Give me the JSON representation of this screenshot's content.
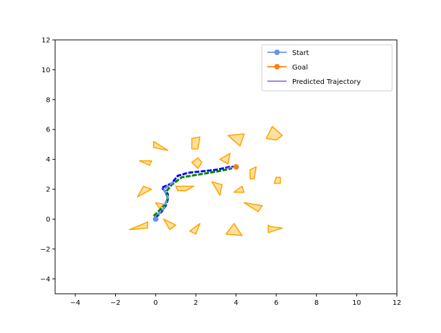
{
  "chart_data": {
    "type": "line",
    "title": "",
    "xlabel": "",
    "ylabel": "",
    "xlim": [
      -5,
      12
    ],
    "ylim": [
      -5,
      12
    ],
    "xticks": [
      -4,
      -2,
      0,
      2,
      4,
      6,
      8,
      10,
      12
    ],
    "yticks": [
      -4,
      -2,
      0,
      2,
      4,
      6,
      8,
      10,
      12
    ],
    "xtick_labels": [
      "−4",
      "−2",
      "0",
      "2",
      "4",
      "6",
      "8",
      "10",
      "12"
    ],
    "ytick_labels": [
      "−4",
      "−2",
      "0",
      "2",
      "4",
      "6",
      "8",
      "10",
      "12"
    ],
    "grid": false,
    "legend_position": "top-right",
    "legend": [
      {
        "label": "Start",
        "color": "#6495ed",
        "marker": "circle"
      },
      {
        "label": "Goal",
        "color": "#ff7f0e",
        "marker": "circle"
      },
      {
        "label": "Predicted Trajectory",
        "color": "#9370db",
        "marker": "none"
      }
    ],
    "start": {
      "x": 0.0,
      "y": 0.0
    },
    "goal": {
      "x": 4.0,
      "y": 3.5
    },
    "obstacle_style": {
      "fill": "#ffe0a0",
      "stroke": "#ffa500"
    },
    "obstacles": [
      [
        [
          -0.1,
          5.2
        ],
        [
          0.6,
          4.6
        ],
        [
          -0.1,
          4.8
        ]
      ],
      [
        [
          1.8,
          5.4
        ],
        [
          2.2,
          5.5
        ],
        [
          2.1,
          4.7
        ],
        [
          1.8,
          4.7
        ]
      ],
      [
        [
          3.6,
          5.6
        ],
        [
          4.4,
          5.7
        ],
        [
          4.2,
          4.9
        ]
      ],
      [
        [
          5.5,
          5.4
        ],
        [
          5.8,
          6.2
        ],
        [
          6.3,
          5.6
        ],
        [
          6.0,
          5.3
        ]
      ],
      [
        [
          -0.8,
          3.9
        ],
        [
          -0.2,
          3.9
        ],
        [
          -0.3,
          3.6
        ]
      ],
      [
        [
          1.8,
          3.8
        ],
        [
          2.1,
          4.1
        ],
        [
          2.3,
          3.8
        ],
        [
          2.1,
          3.4
        ]
      ],
      [
        [
          3.2,
          4.0
        ],
        [
          3.7,
          4.4
        ],
        [
          3.6,
          3.7
        ]
      ],
      [
        [
          4.7,
          3.3
        ],
        [
          5.0,
          3.5
        ],
        [
          4.9,
          2.7
        ],
        [
          4.7,
          2.7
        ]
      ],
      [
        [
          -0.6,
          2.2
        ],
        [
          -0.2,
          2.0
        ],
        [
          -0.9,
          1.5
        ]
      ],
      [
        [
          1.0,
          2.2
        ],
        [
          1.9,
          2.2
        ],
        [
          1.5,
          1.9
        ],
        [
          1.1,
          1.9
        ]
      ],
      [
        [
          2.8,
          2.5
        ],
        [
          3.3,
          2.3
        ],
        [
          3.2,
          1.6
        ]
      ],
      [
        [
          4.3,
          2.2
        ],
        [
          4.4,
          1.8
        ],
        [
          3.9,
          1.8
        ]
      ],
      [
        [
          6.0,
          2.8
        ],
        [
          6.2,
          2.8
        ],
        [
          6.2,
          2.4
        ],
        [
          5.9,
          2.4
        ]
      ],
      [
        [
          0.0,
          1.1
        ],
        [
          0.4,
          1.0
        ],
        [
          0.2,
          0.7
        ]
      ],
      [
        [
          4.4,
          1.1
        ],
        [
          5.3,
          0.9
        ],
        [
          5.1,
          0.5
        ]
      ],
      [
        [
          0.4,
          0.0
        ],
        [
          0.7,
          -0.7
        ],
        [
          1.0,
          -0.4
        ]
      ],
      [
        [
          -1.3,
          -0.7
        ],
        [
          -0.4,
          -0.6
        ],
        [
          -0.4,
          -0.2
        ]
      ],
      [
        [
          1.7,
          -0.8
        ],
        [
          2.0,
          -1.0
        ],
        [
          2.2,
          -0.3
        ]
      ],
      [
        [
          3.5,
          -1.0
        ],
        [
          4.3,
          -1.1
        ],
        [
          3.9,
          -0.3
        ]
      ],
      [
        [
          5.7,
          -0.5
        ],
        [
          6.3,
          -0.6
        ],
        [
          5.6,
          -0.9
        ],
        [
          5.6,
          -0.4
        ]
      ]
    ],
    "trajectories": [
      {
        "color": "#0000ff",
        "width": 3.0,
        "dashed": true,
        "points": [
          [
            0.0,
            0.1
          ],
          [
            0.3,
            0.5
          ],
          [
            0.5,
            0.9
          ],
          [
            0.6,
            1.3
          ],
          [
            0.6,
            1.7
          ],
          [
            0.3,
            2.1
          ],
          [
            0.8,
            2.4
          ],
          [
            1.1,
            2.9
          ],
          [
            1.6,
            3.1
          ],
          [
            3.0,
            3.3
          ],
          [
            3.7,
            3.5
          ],
          [
            4.0,
            3.5
          ]
        ]
      },
      {
        "color": "#008000",
        "width": 3.0,
        "dashed": true,
        "points": [
          [
            -0.1,
            0.2
          ],
          [
            0.2,
            0.6
          ],
          [
            0.5,
            1.0
          ],
          [
            0.6,
            1.4
          ],
          [
            0.5,
            1.8
          ],
          [
            0.8,
            2.3
          ],
          [
            1.3,
            2.8
          ],
          [
            2.2,
            3.0
          ],
          [
            3.1,
            3.2
          ],
          [
            3.8,
            3.4
          ]
        ]
      },
      {
        "color": "#6495ed",
        "width": 3.0,
        "dashed": true,
        "points": [
          [
            0.1,
            0.3
          ],
          [
            0.4,
            0.7
          ],
          [
            0.5,
            1.1
          ],
          [
            0.6,
            1.5
          ],
          [
            0.4,
            2.0
          ],
          [
            0.6,
            2.2
          ],
          [
            0.9,
            2.5
          ]
        ]
      },
      {
        "color": "#9370db",
        "width": 2.0,
        "dashed": false,
        "points": [
          [
            3.5,
            3.4
          ],
          [
            4.0,
            3.5
          ]
        ]
      }
    ]
  }
}
